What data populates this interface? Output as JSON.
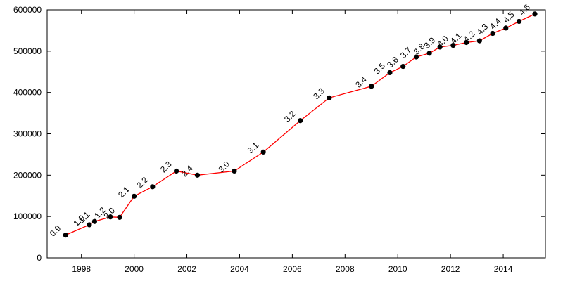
{
  "chart_data": {
    "type": "line",
    "title": "",
    "xlabel": "",
    "ylabel": "",
    "xlim": [
      1996.7,
      2015.6
    ],
    "ylim": [
      0,
      600000
    ],
    "grid": false,
    "x_ticks": [
      "1998",
      "2000",
      "2002",
      "2004",
      "2006",
      "2008",
      "2010",
      "2012",
      "2014"
    ],
    "y_ticks": [
      "0",
      "100000",
      "200000",
      "300000",
      "400000",
      "500000",
      "600000"
    ],
    "colors": {
      "line": "#ff0000",
      "marker": "#000000"
    },
    "series": [
      {
        "points": [
          {
            "x": 1997.4,
            "y": 55000,
            "label": "0.9"
          },
          {
            "x": 1998.3,
            "y": 80000,
            "label": "1.0"
          },
          {
            "x": 1998.5,
            "y": 88000,
            "label": "1.1"
          },
          {
            "x": 1999.1,
            "y": 99000,
            "label": "1.2"
          },
          {
            "x": 1999.45,
            "y": 98000,
            "label": "2.0"
          },
          {
            "x": 2000.0,
            "y": 149000,
            "label": "2.1"
          },
          {
            "x": 2000.7,
            "y": 172000,
            "label": "2.2"
          },
          {
            "x": 2001.6,
            "y": 210000,
            "label": "2.3"
          },
          {
            "x": 2002.4,
            "y": 200000,
            "label": "2.4"
          },
          {
            "x": 2003.8,
            "y": 210000,
            "label": "3.0"
          },
          {
            "x": 2004.9,
            "y": 256000,
            "label": "3.1"
          },
          {
            "x": 2006.3,
            "y": 332000,
            "label": "3.2"
          },
          {
            "x": 2007.4,
            "y": 387000,
            "label": "3.3"
          },
          {
            "x": 2009.0,
            "y": 415000,
            "label": "3.4"
          },
          {
            "x": 2009.7,
            "y": 448000,
            "label": "3.5"
          },
          {
            "x": 2010.2,
            "y": 463000,
            "label": "3.6"
          },
          {
            "x": 2010.7,
            "y": 486000,
            "label": "3.7"
          },
          {
            "x": 2011.2,
            "y": 495000,
            "label": "3.8"
          },
          {
            "x": 2011.6,
            "y": 510000,
            "label": "3.9"
          },
          {
            "x": 2012.1,
            "y": 514000,
            "label": "4.0"
          },
          {
            "x": 2012.6,
            "y": 521000,
            "label": "4.1"
          },
          {
            "x": 2013.1,
            "y": 525000,
            "label": "4.2"
          },
          {
            "x": 2013.6,
            "y": 543000,
            "label": "4.3"
          },
          {
            "x": 2014.1,
            "y": 556000,
            "label": "4.4"
          },
          {
            "x": 2014.6,
            "y": 572000,
            "label": "4.5"
          },
          {
            "x": 2015.2,
            "y": 590000,
            "label": "4.6"
          }
        ]
      }
    ]
  }
}
